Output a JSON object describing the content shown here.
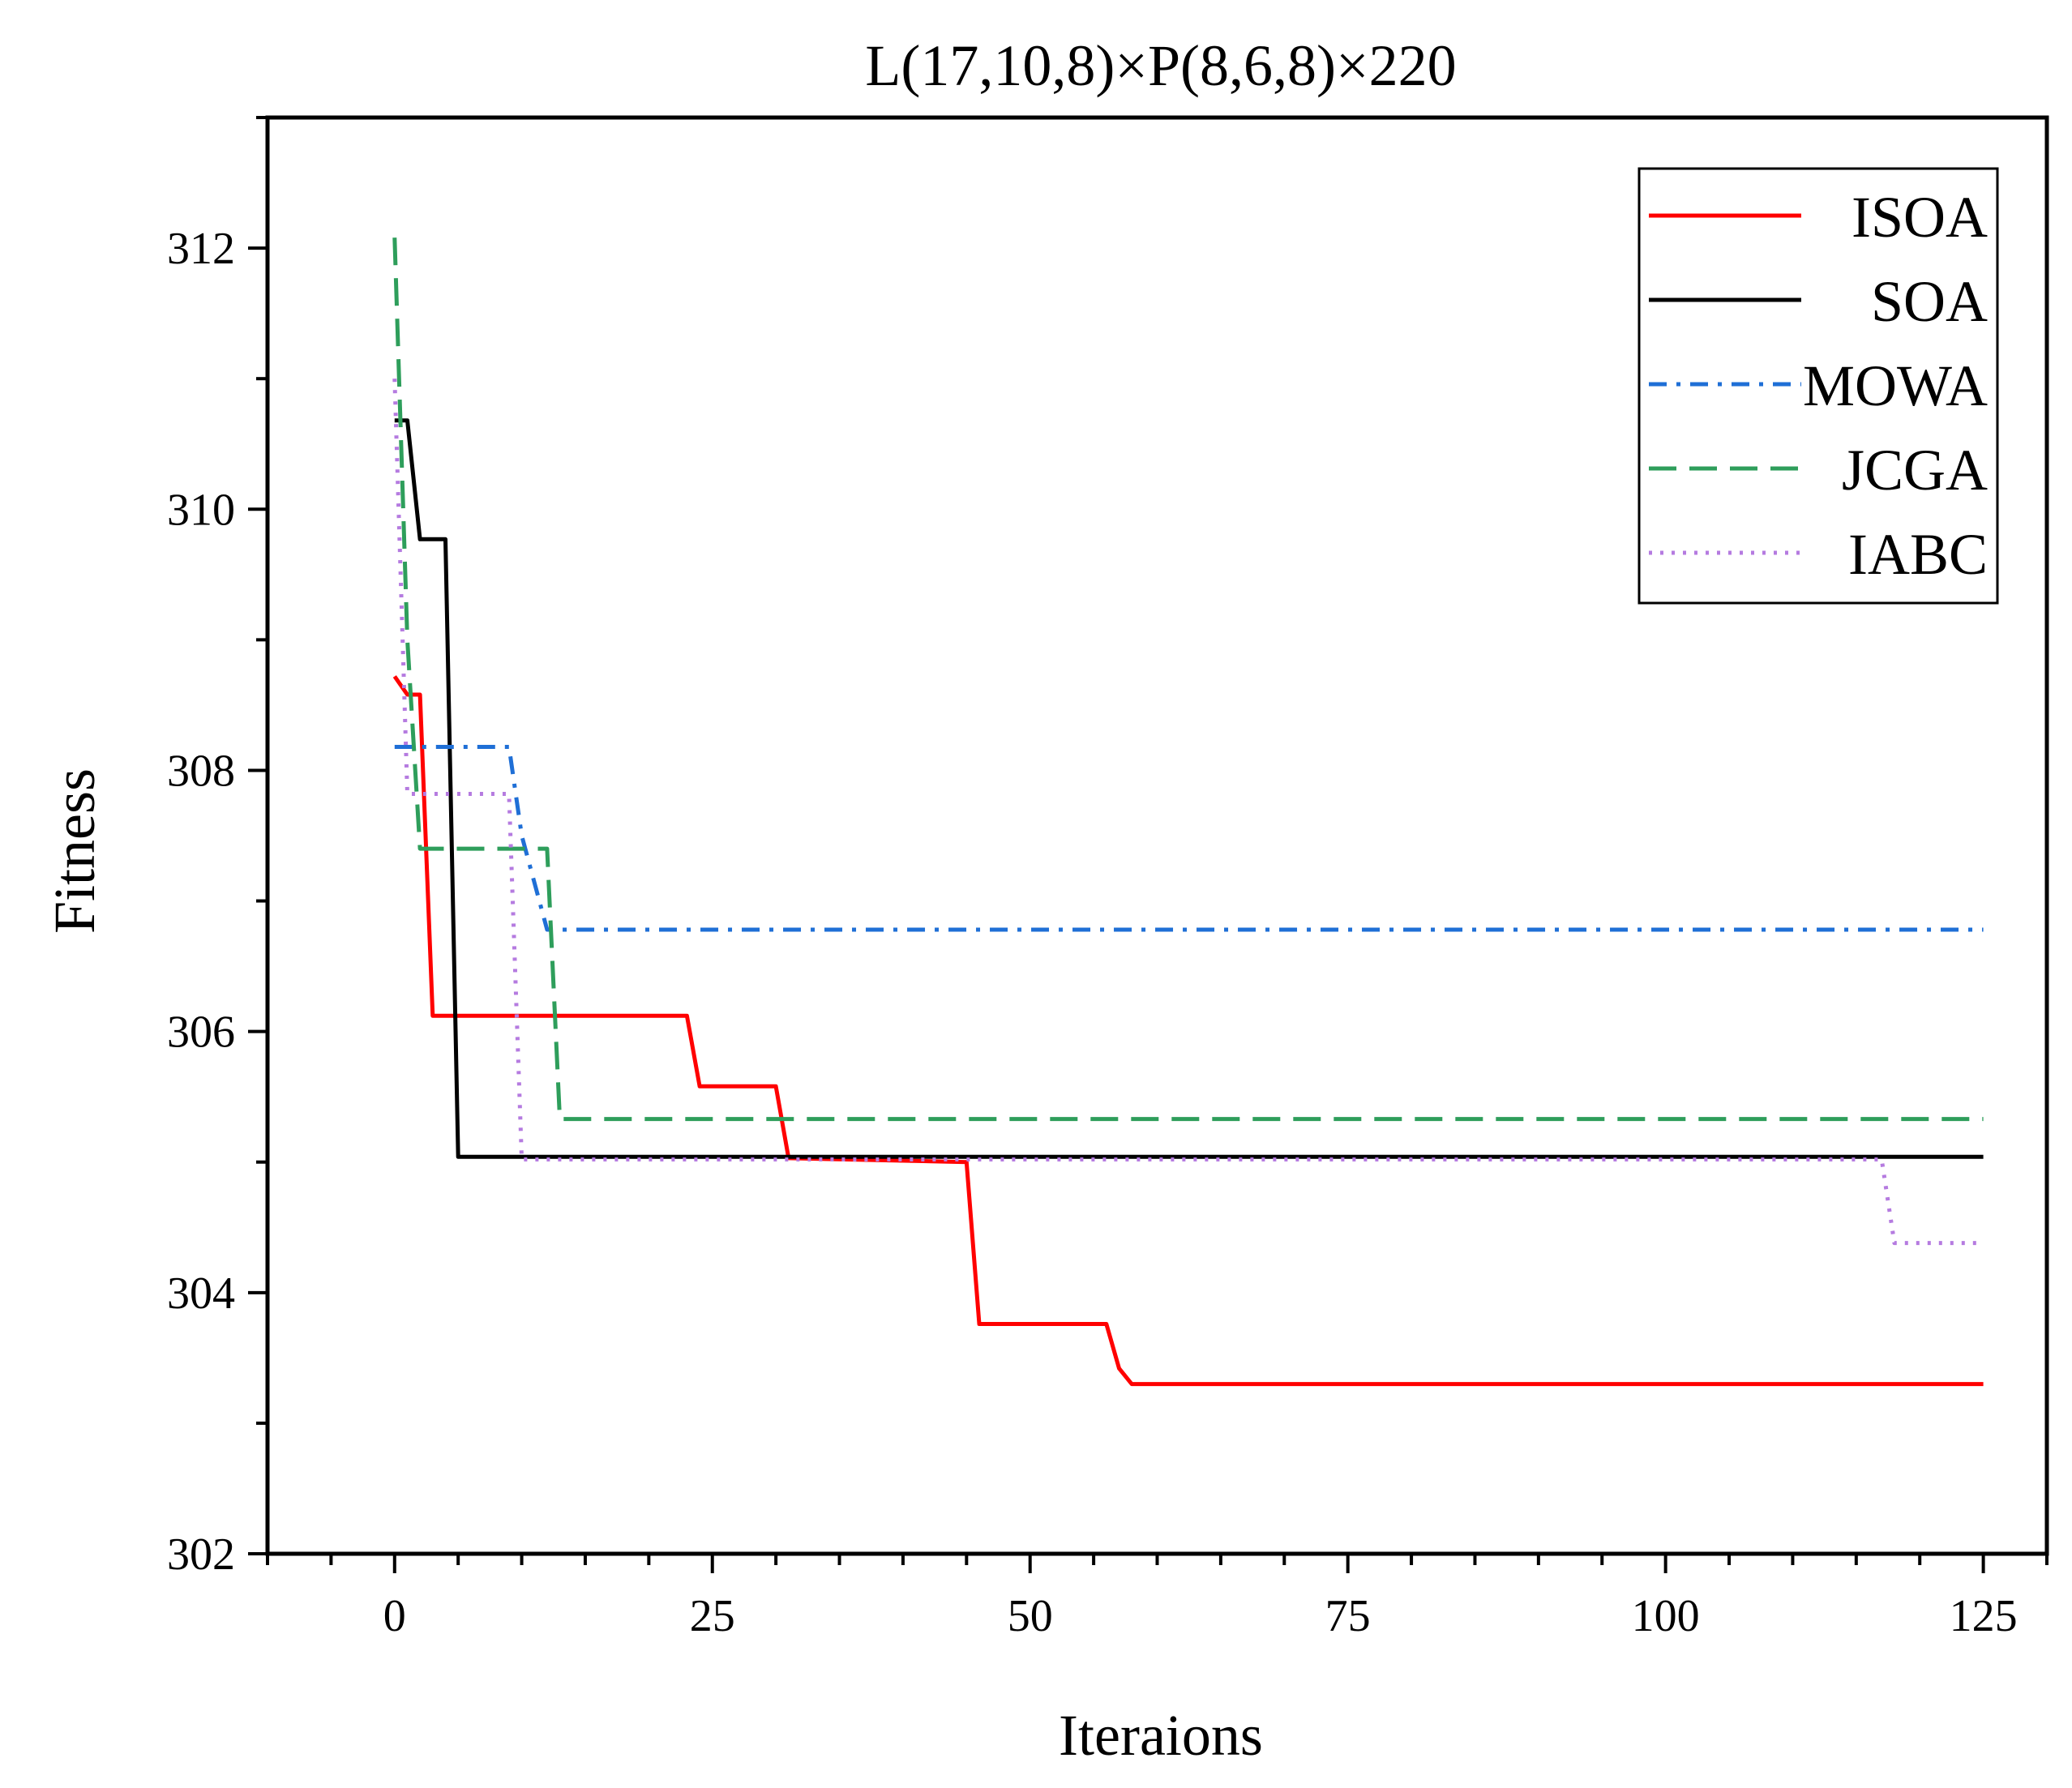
{
  "chart_data": {
    "type": "line",
    "title": "L(17,10,8)×P(8,6,8)×220",
    "xlabel": "Iteraions",
    "ylabel": "Fitness",
    "xlim": [
      -10,
      130
    ],
    "ylim": [
      302,
      313
    ],
    "xticks": [
      0,
      25,
      50,
      75,
      100,
      125
    ],
    "yticks": [
      302,
      304,
      306,
      308,
      310,
      312
    ],
    "xtick_labels": [
      "0",
      "25",
      "50",
      "75",
      "100",
      "125"
    ],
    "ytick_labels": [
      "302",
      "304",
      "306",
      "308",
      "310",
      "312"
    ],
    "grid": false,
    "legend_position": "top-right",
    "series": [
      {
        "name": "ISOA",
        "color": "#ff0000",
        "style": "solid",
        "points": [
          [
            0,
            308.72
          ],
          [
            1,
            308.58
          ],
          [
            2,
            308.58
          ],
          [
            3,
            306.12
          ],
          [
            23,
            306.12
          ],
          [
            24,
            305.58
          ],
          [
            30,
            305.58
          ],
          [
            31,
            305.03
          ],
          [
            45,
            305.0
          ],
          [
            46,
            303.76
          ],
          [
            56,
            303.76
          ],
          [
            57,
            303.42
          ],
          [
            58,
            303.3
          ],
          [
            125,
            303.3
          ]
        ]
      },
      {
        "name": "SOA",
        "color": "#000000",
        "style": "solid",
        "points": [
          [
            0,
            310.68
          ],
          [
            1,
            310.68
          ],
          [
            2,
            309.77
          ],
          [
            4,
            309.77
          ],
          [
            5,
            305.04
          ],
          [
            125,
            305.04
          ]
        ]
      },
      {
        "name": "MOWA",
        "color": "#1f6fd6",
        "style": "dashdot",
        "points": [
          [
            0,
            308.18
          ],
          [
            9,
            308.18
          ],
          [
            10,
            307.5
          ],
          [
            12,
            306.78
          ],
          [
            125,
            306.78
          ]
        ]
      },
      {
        "name": "JCGA",
        "color": "#2e9e5b",
        "style": "dashed",
        "points": [
          [
            0,
            312.08
          ],
          [
            1,
            309.0
          ],
          [
            2,
            307.4
          ],
          [
            12,
            307.4
          ],
          [
            13,
            305.33
          ],
          [
            125,
            305.33
          ]
        ]
      },
      {
        "name": "IABC",
        "color": "#b57be0",
        "style": "dotted",
        "points": [
          [
            0,
            311.0
          ],
          [
            1,
            307.82
          ],
          [
            9,
            307.82
          ],
          [
            10,
            305.02
          ],
          [
            117,
            305.02
          ],
          [
            118,
            304.38
          ],
          [
            125,
            304.38
          ]
        ]
      }
    ]
  }
}
